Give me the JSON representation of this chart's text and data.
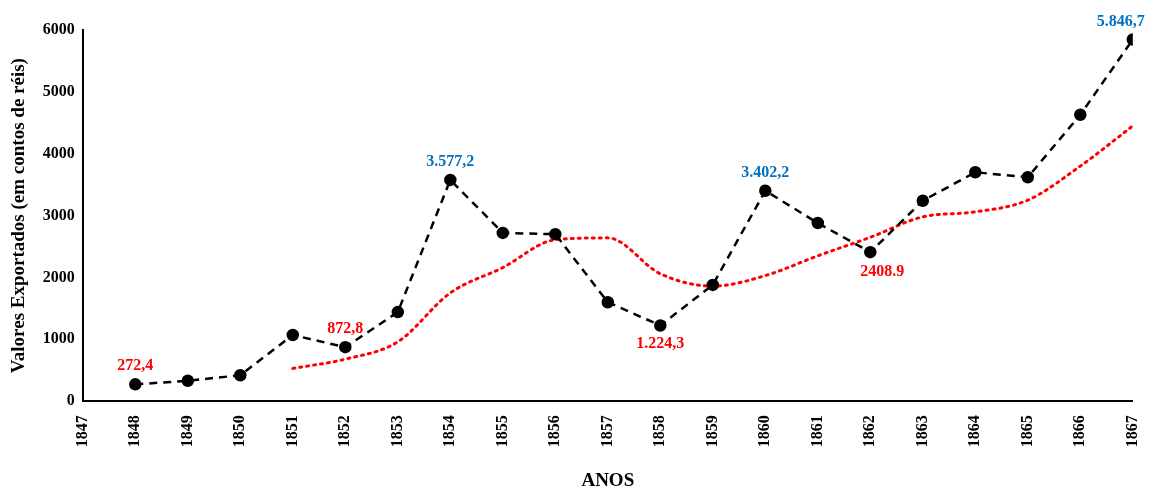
{
  "chart_data": {
    "type": "line",
    "xlabel": "ANOS",
    "ylabel": "Valores Exportados (em contos de réis)",
    "x": [
      1848,
      1849,
      1850,
      1851,
      1852,
      1853,
      1854,
      1855,
      1856,
      1857,
      1858,
      1859,
      1860,
      1861,
      1862,
      1863,
      1864,
      1865,
      1866,
      1867
    ],
    "xlim": [
      1847,
      1867
    ],
    "xticks": [
      1847,
      1848,
      1849,
      1850,
      1851,
      1852,
      1853,
      1854,
      1855,
      1856,
      1857,
      1858,
      1859,
      1860,
      1861,
      1862,
      1863,
      1864,
      1865,
      1866,
      1867
    ],
    "ylim": [
      0,
      6000
    ],
    "yticks": [
      0,
      1000,
      2000,
      3000,
      4000,
      5000,
      6000
    ],
    "series": [
      {
        "color": "#000000",
        "marker": "circle",
        "line_style": "dashed",
        "values": [
          272.4,
          330,
          420,
          1070,
          872.8,
          1440,
          3577.2,
          2720,
          2700,
          1600,
          1224.3,
          1880,
          3402.2,
          2880,
          2408.9,
          3240,
          3700,
          3620,
          4630,
          5846.7
        ],
        "value_labels": [
          "272,4",
          null,
          null,
          null,
          "872,8",
          null,
          "3.577,2",
          null,
          null,
          null,
          "1.224,3",
          null,
          "3.402,2",
          null,
          null,
          null,
          null,
          null,
          null,
          "5.846,7"
        ]
      },
      {
        "color": "#ff0000",
        "marker": "none",
        "line_style": "dotted",
        "x": [
          1851,
          1852,
          1853,
          1854,
          1855,
          1856,
          1857,
          1858,
          1859,
          1860,
          1861,
          1862,
          1863,
          1864,
          1865,
          1866,
          1867
        ],
        "values": [
          530,
          680,
          960,
          1750,
          2160,
          2610,
          2640,
          2060,
          1860,
          2030,
          2350,
          2650,
          2980,
          3060,
          3250,
          3800,
          4450
        ]
      }
    ],
    "annotations": [
      {
        "text": "2408.9",
        "x": 1862,
        "y": 2408.9
      }
    ]
  }
}
